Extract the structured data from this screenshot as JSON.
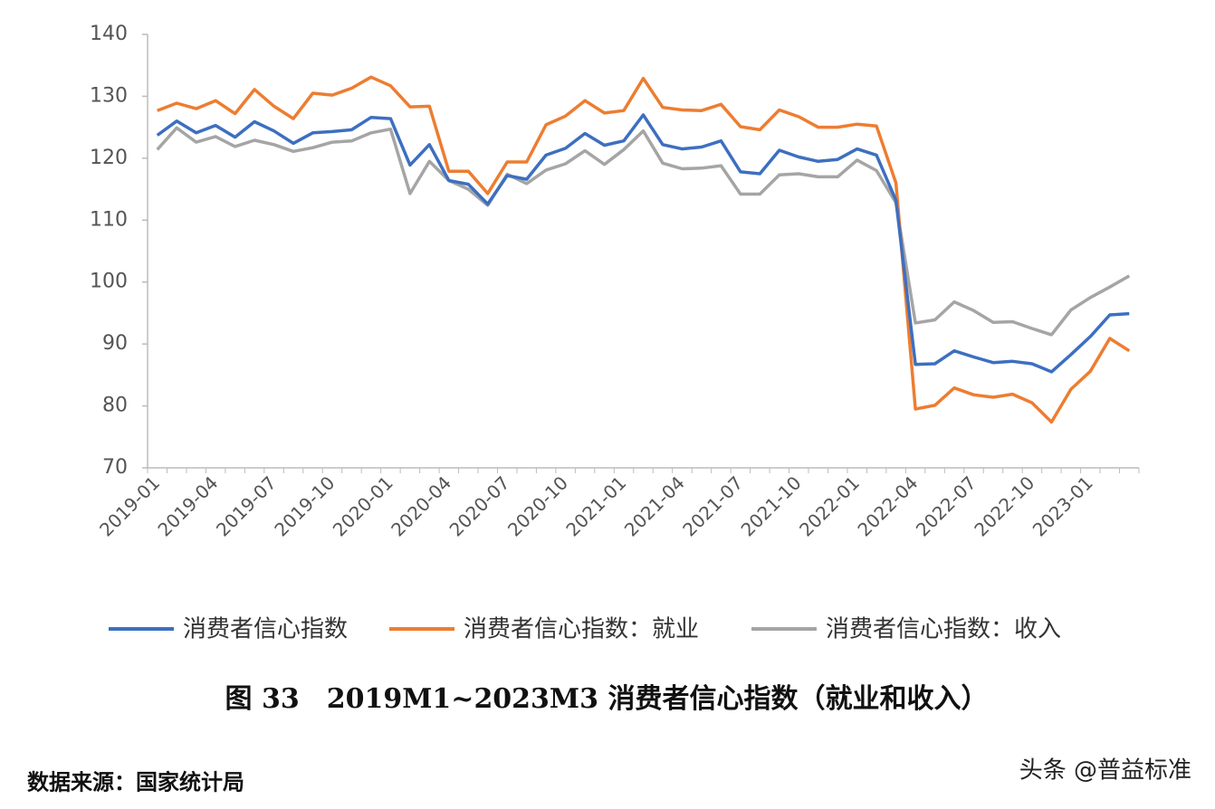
{
  "chart_data": {
    "type": "line",
    "categories": [
      "2019-01",
      null,
      null,
      "2019-04",
      null,
      null,
      "2019-07",
      null,
      null,
      "2019-10",
      null,
      null,
      "2020-01",
      null,
      null,
      "2020-04",
      null,
      null,
      "2020-07",
      null,
      null,
      "2020-10",
      null,
      null,
      "2021-01",
      null,
      null,
      "2021-04",
      null,
      null,
      "2021-07",
      null,
      null,
      "2021-10",
      null,
      null,
      "2022-01",
      null,
      null,
      "2022-04",
      null,
      null,
      "2022-07",
      null,
      null,
      "2022-10",
      null,
      null,
      "2023-01",
      null,
      null
    ],
    "series": [
      {
        "name": "消费者信心指数",
        "color": "#3d6fc0",
        "values": [
          123.7,
          126.0,
          124.1,
          125.3,
          123.4,
          125.9,
          124.4,
          122.4,
          124.1,
          124.3,
          124.6,
          126.6,
          126.4,
          118.9,
          122.2,
          116.4,
          115.8,
          112.6,
          117.2,
          116.6,
          120.5,
          121.6,
          124.0,
          122.1,
          122.8,
          127.0,
          122.2,
          121.5,
          121.8,
          122.8,
          117.8,
          117.5,
          121.3,
          120.2,
          119.5,
          119.8,
          121.5,
          120.5,
          113.2,
          86.7,
          86.8,
          88.9,
          87.9,
          87.0,
          87.2,
          86.8,
          85.5,
          88.3,
          91.2,
          94.7,
          94.9
        ]
      },
      {
        "name": "消费者信心指数：就业",
        "color": "#ed7d31",
        "values": [
          127.7,
          128.9,
          128.0,
          129.3,
          127.2,
          131.1,
          128.4,
          126.4,
          130.5,
          130.2,
          131.3,
          133.1,
          131.7,
          128.3,
          128.4,
          117.9,
          117.9,
          114.3,
          119.4,
          119.4,
          125.4,
          126.8,
          129.3,
          127.3,
          127.7,
          132.9,
          128.2,
          127.8,
          127.7,
          128.7,
          125.1,
          124.6,
          127.8,
          126.7,
          125.0,
          125.0,
          125.5,
          125.2,
          116.0,
          79.5,
          80.1,
          82.9,
          81.8,
          81.4,
          81.9,
          80.5,
          77.4,
          82.7,
          85.6,
          90.9,
          88.9
        ]
      },
      {
        "name": "消费者信心指数：收入",
        "color": "#a5a5a5",
        "values": [
          121.4,
          124.9,
          122.6,
          123.5,
          121.9,
          122.9,
          122.2,
          121.1,
          121.7,
          122.6,
          122.8,
          124.1,
          124.7,
          114.3,
          119.5,
          116.4,
          115.0,
          112.4,
          117.4,
          115.9,
          118.1,
          119.1,
          121.2,
          119.0,
          121.4,
          124.4,
          119.2,
          118.3,
          118.4,
          118.8,
          114.2,
          114.2,
          117.3,
          117.5,
          117.0,
          117.0,
          119.7,
          118.0,
          112.8,
          93.4,
          93.9,
          96.8,
          95.4,
          93.5,
          93.6,
          92.5,
          91.5,
          95.5,
          97.5,
          99.2,
          101.0
        ]
      }
    ],
    "ylim": [
      70,
      140
    ],
    "yticks": [
      70,
      80,
      90,
      100,
      110,
      120,
      130,
      140
    ],
    "grid": false,
    "caption": "图 33　2019M1~2023M3 消费者信心指数（就业和收入）",
    "source": "数据来源：国家统计局",
    "watermark": "头条 @普益标准"
  }
}
